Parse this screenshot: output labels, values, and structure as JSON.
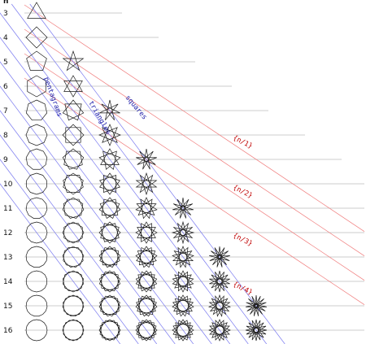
{
  "header": "n",
  "n_values": [
    3,
    4,
    5,
    6,
    7,
    8,
    9,
    10,
    11,
    12,
    13,
    14,
    15,
    16
  ],
  "row_labels": [
    "3",
    "4",
    "5",
    "6",
    "7",
    "8",
    "9",
    "10",
    "11",
    "12",
    "13",
    "14",
    "15",
    "16"
  ],
  "blue_labels": {
    "pentagrams": "pentagrams",
    "triangles": "triangles",
    "squares": "squares"
  },
  "red_labels": [
    "{n/1}",
    "{n/2}",
    "{n/3}",
    "{n/4}"
  ],
  "colors": {
    "blue_line": "#7b7bf0",
    "red_line": "#f07b7b",
    "grey_line": "#9a9a9a",
    "shape": "#1a1a1a"
  }
}
